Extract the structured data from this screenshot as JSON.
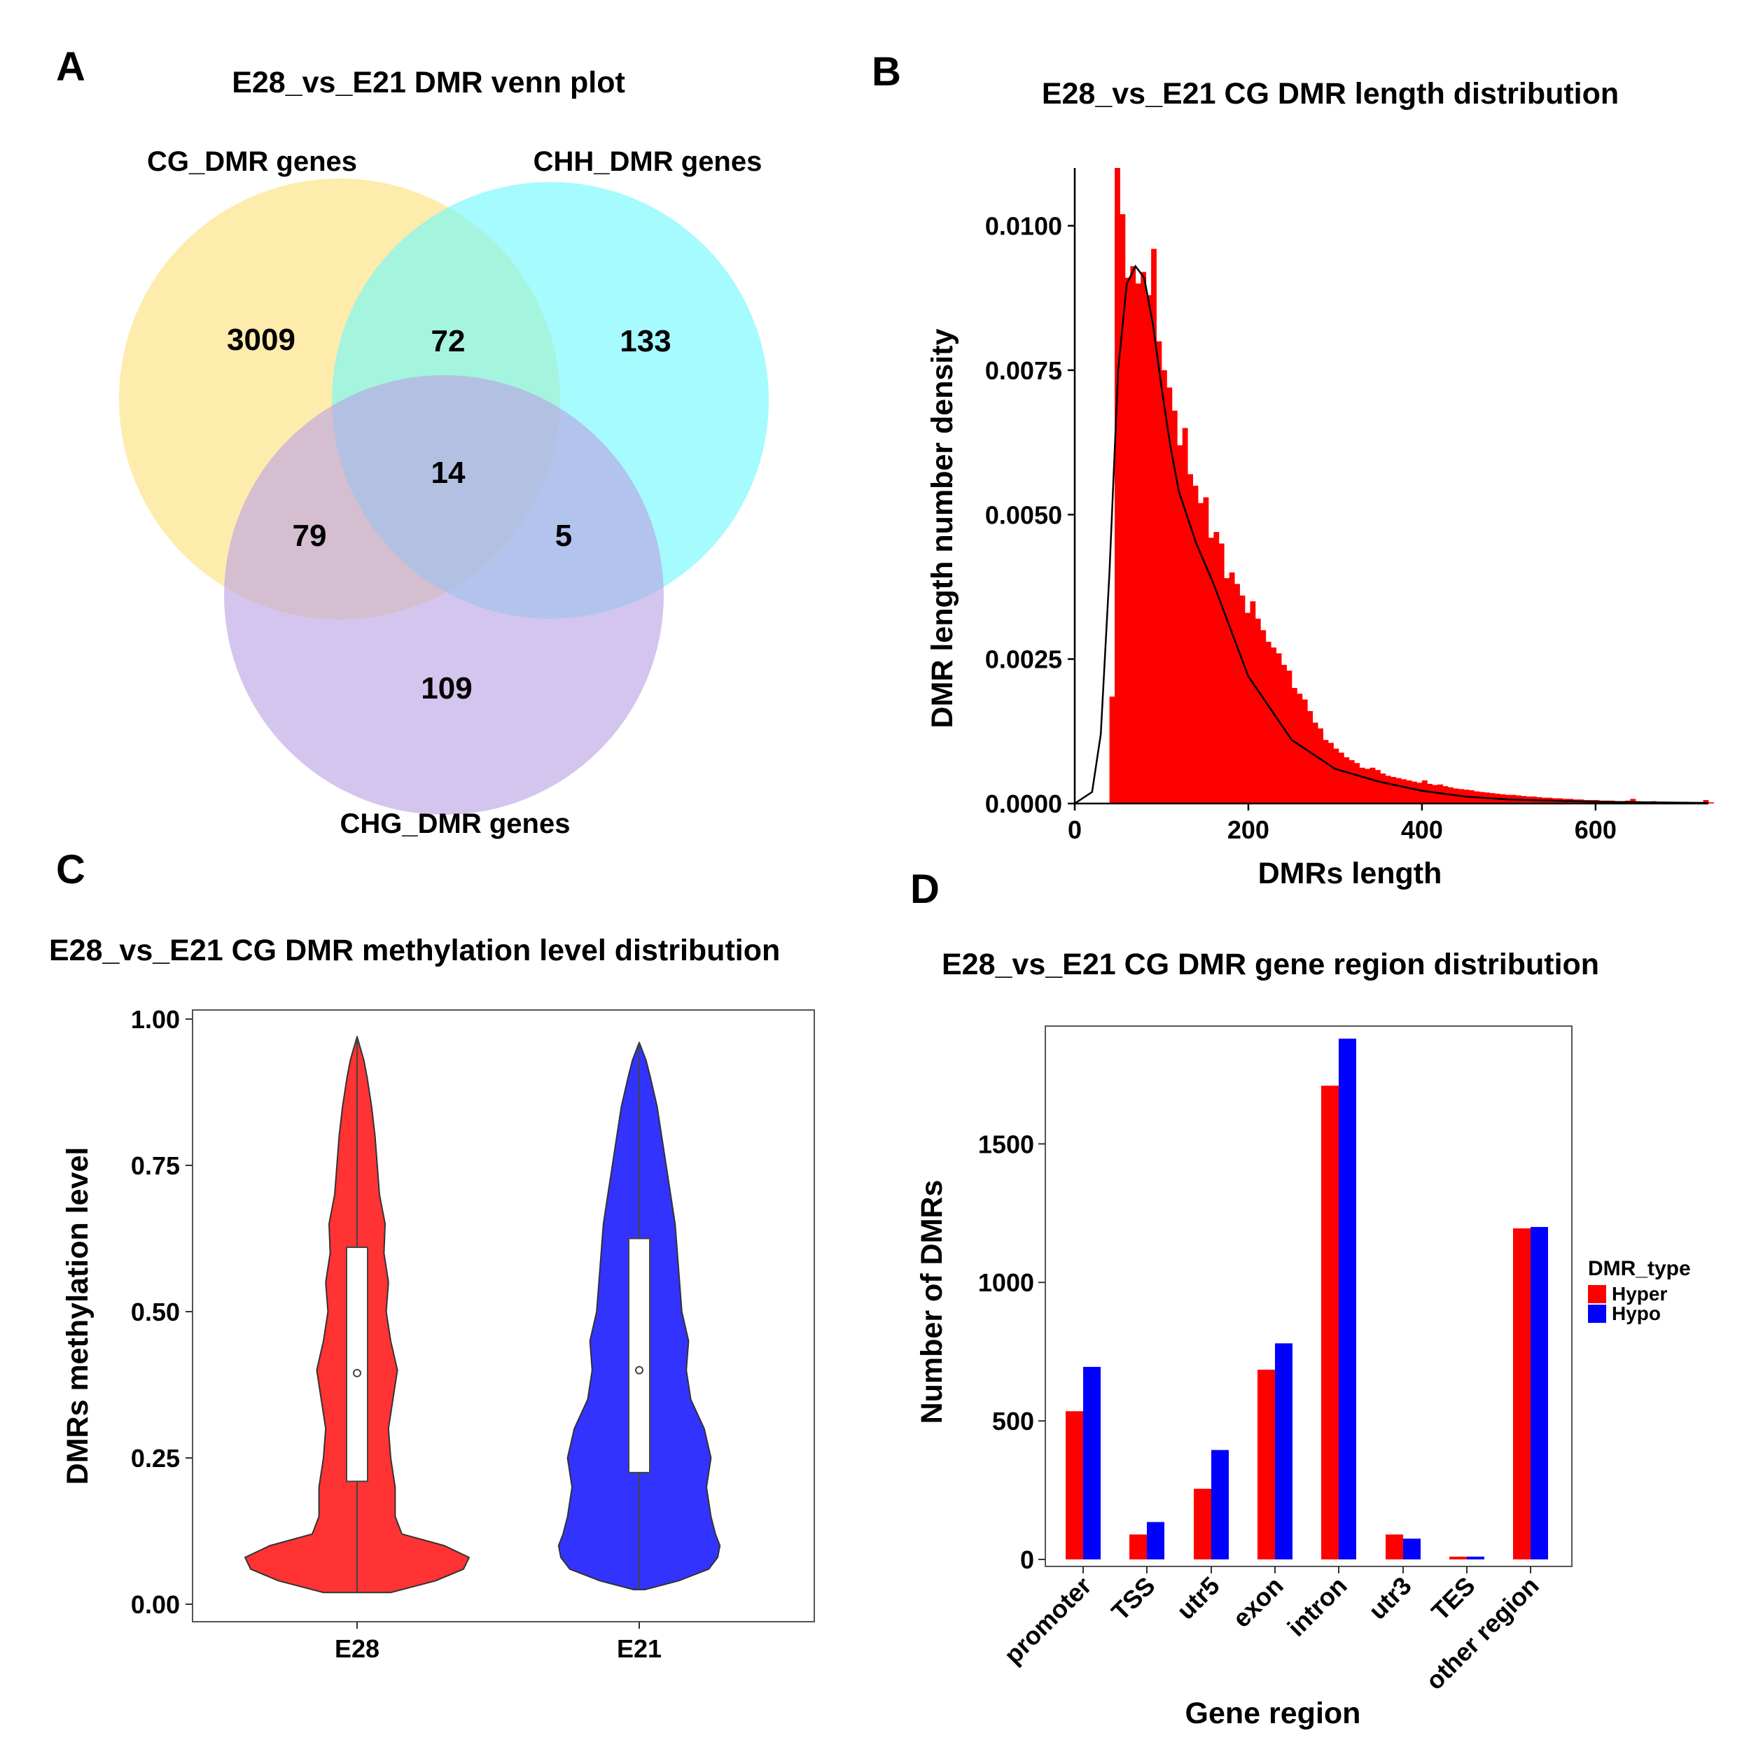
{
  "panels": {
    "a": "A",
    "b": "B",
    "c": "C",
    "d": "D"
  },
  "chart_data": [
    {
      "type": "venn",
      "title": "E28_vs_E21 DMR venn plot",
      "sets": [
        {
          "name": "CG_DMR genes",
          "color": "#fde07a"
        },
        {
          "name": "CHH_DMR genes",
          "color": "#6ef9fc"
        },
        {
          "name": "CHG_DMR genes",
          "color": "#b9a2e4"
        }
      ],
      "regions": {
        "cg_only": "3009",
        "cg_chh": "72",
        "chh_only": "133",
        "all_three": "14",
        "cg_chg": "79",
        "chh_chg": "5",
        "chg_only": "109"
      }
    },
    {
      "type": "bar",
      "subtype": "histogram",
      "title": "E28_vs_E21 CG DMR length distribution",
      "xlabel": "DMRs length",
      "ylabel": "DMR length number density",
      "xlim": [
        0,
        730
      ],
      "ylim": [
        0,
        0.011
      ],
      "xticks": [
        "0",
        "200",
        "400",
        "600"
      ],
      "yticks": [
        "0.0000",
        "0.0025",
        "0.0050",
        "0.0075",
        "0.0100"
      ],
      "bar_color": "#ff0000",
      "bin_width": 6,
      "bin_start": 40,
      "values": [
        0.00185,
        0.011,
        0.0102,
        0.0091,
        0.0093,
        0.009,
        0.0092,
        0.0088,
        0.0096,
        0.008,
        0.0075,
        0.0072,
        0.0068,
        0.0062,
        0.0065,
        0.0057,
        0.0055,
        0.0052,
        0.0053,
        0.0046,
        0.0047,
        0.0045,
        0.0039,
        0.004,
        0.0038,
        0.0036,
        0.0033,
        0.0035,
        0.0032,
        0.003,
        0.0028,
        0.0027,
        0.0026,
        0.0024,
        0.0023,
        0.002,
        0.0019,
        0.0018,
        0.0016,
        0.0014,
        0.0013,
        0.0011,
        0.00105,
        0.00095,
        0.00088,
        0.0008,
        0.00075,
        0.0007,
        0.00062,
        0.0006,
        0.00062,
        0.00058,
        0.00052,
        0.00048,
        0.00046,
        0.00044,
        0.00042,
        0.0004,
        0.00038,
        0.00036,
        0.0004,
        0.00034,
        0.00032,
        0.00033,
        0.0003,
        0.00028,
        0.00026,
        0.00025,
        0.00024,
        0.00023,
        0.00021,
        0.0002,
        0.00019,
        0.00018,
        0.00017,
        0.00016,
        0.00015,
        0.00015,
        0.00014,
        0.00013,
        0.00012,
        0.00012,
        0.00011,
        0.0001,
        0.0001,
        9e-05,
        9e-05,
        8e-05,
        8e-05,
        7e-05,
        7e-05,
        6e-05,
        6e-05,
        6e-05,
        5e-05,
        5e-05,
        5e-05,
        4e-05,
        4e-05,
        5e-05,
        8e-05,
        4e-05,
        3e-05,
        3e-05,
        4e-05,
        3e-05,
        3e-05,
        3e-05,
        2e-05,
        2e-05,
        3e-05,
        2e-05,
        2e-05,
        2e-05,
        6e-05,
        2e-05
      ],
      "density_curve": {
        "x": [
          0,
          20,
          30,
          40,
          50,
          60,
          70,
          80,
          90,
          100,
          110,
          120,
          140,
          160,
          180,
          200,
          250,
          300,
          350,
          400,
          450,
          500,
          600,
          730
        ],
        "y": [
          0,
          0.0002,
          0.0012,
          0.004,
          0.0075,
          0.009,
          0.0093,
          0.0091,
          0.0083,
          0.0072,
          0.0062,
          0.0054,
          0.0045,
          0.0038,
          0.003,
          0.0022,
          0.0011,
          0.0006,
          0.00038,
          0.00022,
          0.00012,
          7e-05,
          3e-05,
          1e-05
        ]
      }
    },
    {
      "type": "violin",
      "title": "E28_vs_E21 CG DMR methylation level distribution",
      "xlabel": "",
      "ylabel": "DMRs methylation level",
      "ylim": [
        0,
        1
      ],
      "yticks": [
        "0.00",
        "0.25",
        "0.50",
        "0.75",
        "1.00"
      ],
      "categories": [
        "E28",
        "E21"
      ],
      "series": [
        {
          "name": "E28",
          "color": "#ff3333",
          "min": 0.02,
          "max": 0.97,
          "q1": 0.21,
          "median": 0.395,
          "q3": 0.61,
          "profile": {
            "y": [
              0.02,
              0.04,
              0.06,
              0.08,
              0.1,
              0.12,
              0.15,
              0.2,
              0.25,
              0.3,
              0.35,
              0.4,
              0.45,
              0.5,
              0.55,
              0.6,
              0.65,
              0.7,
              0.75,
              0.8,
              0.85,
              0.9,
              0.93,
              0.95,
              0.97
            ],
            "w": [
              0.3,
              0.7,
              0.95,
              1.0,
              0.78,
              0.4,
              0.34,
              0.34,
              0.3,
              0.28,
              0.32,
              0.36,
              0.3,
              0.26,
              0.28,
              0.24,
              0.25,
              0.2,
              0.18,
              0.16,
              0.13,
              0.09,
              0.06,
              0.03,
              0.0
            ]
          }
        },
        {
          "name": "E21",
          "color": "#3333ff",
          "min": 0.025,
          "max": 0.96,
          "q1": 0.225,
          "median": 0.4,
          "q3": 0.625,
          "profile": {
            "y": [
              0.025,
              0.04,
              0.06,
              0.08,
              0.1,
              0.12,
              0.15,
              0.2,
              0.25,
              0.3,
              0.35,
              0.4,
              0.45,
              0.5,
              0.55,
              0.6,
              0.65,
              0.7,
              0.75,
              0.8,
              0.85,
              0.9,
              0.93,
              0.96
            ],
            "w": [
              0.05,
              0.35,
              0.62,
              0.7,
              0.72,
              0.68,
              0.64,
              0.6,
              0.64,
              0.58,
              0.46,
              0.42,
              0.44,
              0.38,
              0.36,
              0.34,
              0.32,
              0.28,
              0.24,
              0.2,
              0.16,
              0.1,
              0.06,
              0.0
            ]
          }
        }
      ]
    },
    {
      "type": "bar",
      "title": "E28_vs_E21 CG DMR gene region distribution",
      "xlabel": "Gene region",
      "ylabel": "Number of DMRs",
      "ylim": [
        0,
        1900
      ],
      "yticks": [
        "0",
        "500",
        "1000",
        "1500"
      ],
      "categories": [
        "promoter",
        "TSS",
        "utr5",
        "exon",
        "intron",
        "utr3",
        "TES",
        "other region"
      ],
      "legend_title": "DMR_type",
      "legend_position": "right",
      "series": [
        {
          "name": "Hyper",
          "color": "#ff0000",
          "values": [
            535,
            90,
            255,
            685,
            1710,
            90,
            10,
            1195
          ]
        },
        {
          "name": "Hypo",
          "color": "#0000ff",
          "values": [
            695,
            135,
            395,
            780,
            1880,
            75,
            10,
            1200
          ]
        }
      ]
    }
  ]
}
